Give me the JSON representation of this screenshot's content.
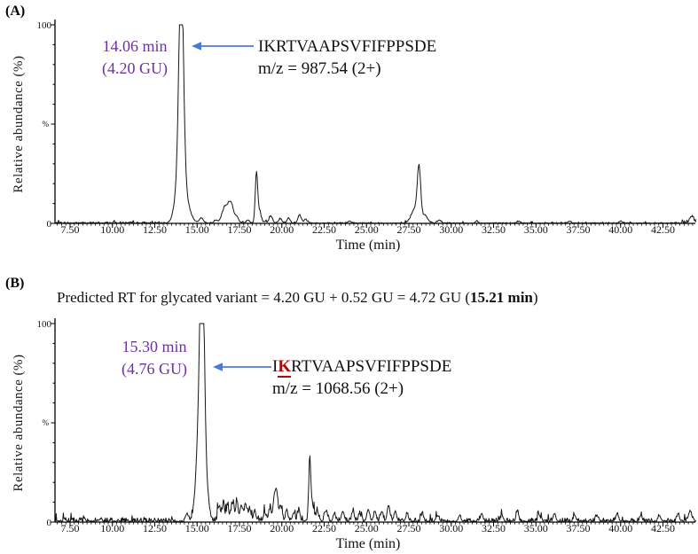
{
  "colors": {
    "accent_purple": "#7030A0",
    "arrow_blue": "#4a7cd6",
    "glycation_red": "#C00000",
    "trace_black": "#151515"
  },
  "panels": [
    {
      "label": "(A)",
      "ylabel": "Relative abundance (%)",
      "xlabel": "Time (min)",
      "y_top_label": "100",
      "y_mid_label": "%",
      "y_bottom_label": "0",
      "rt_line1": "14.06 min",
      "rt_line2": "(4.20 GU)",
      "peptide": {
        "pre": "IKRTVAAPSVFIFPPSDE",
        "gly": "",
        "post": ""
      },
      "mz": "m/z = 987.54 (2+)"
    },
    {
      "label": "(B)",
      "header": {
        "prefix": "Predicted RT for glycated variant = 4.20 GU + 0.52 GU = 4.72 GU (",
        "bold": "15.21 min",
        "suffix": ")"
      },
      "ylabel": "Relative abundance (%)",
      "xlabel": "Time (min)",
      "y_top_label": "100",
      "y_mid_label": "%",
      "y_bottom_label": "0",
      "rt_line1": "15.30 min",
      "rt_line2": "(4.76 GU)",
      "peptide": {
        "pre": "I",
        "gly": "K",
        "post": "RTVAAPSVFIFPPSDE"
      },
      "mz": "m/z = 1068.56 (2+)"
    }
  ],
  "chart_data": [
    {
      "type": "line",
      "title": "Extracted ion chromatogram of unmodified peptide IKRTVAAPSVFIFPPSDE, m/z 987.54 (2+)",
      "xlabel": "Time (min)",
      "ylabel": "Relative abundance (%)",
      "xlim": [
        6.61,
        44.45
      ],
      "ylim": [
        0,
        100
      ],
      "x_ticks": [
        "7.50",
        "10.00",
        "12.50",
        "15.00",
        "17.50",
        "20.00",
        "22.50",
        "25.00",
        "27.50",
        "30.00",
        "32.50",
        "35.00",
        "37.50",
        "40.00",
        "42.50"
      ],
      "minor_tick_step_min": 0.25,
      "grid": false,
      "main_peak": {
        "rt_min": 14.06,
        "gu": 4.2,
        "abundance_pct": 100
      },
      "peaks": [
        [
          14.06,
          100,
          0.13
        ],
        [
          14.0,
          25,
          0.25
        ],
        [
          14.3,
          8,
          0.3
        ],
        [
          15.25,
          2.5,
          0.12
        ],
        [
          16.1,
          1.5,
          0.1
        ],
        [
          16.65,
          8,
          0.18
        ],
        [
          17.0,
          9.5,
          0.15
        ],
        [
          17.35,
          3,
          0.1
        ],
        [
          18.0,
          1.5,
          0.08
        ],
        [
          18.5,
          23,
          0.07
        ],
        [
          18.65,
          6,
          0.12
        ],
        [
          19.35,
          3.5,
          0.1
        ],
        [
          19.9,
          2,
          0.1
        ],
        [
          20.4,
          2.5,
          0.08
        ],
        [
          21.05,
          4,
          0.1
        ],
        [
          21.4,
          2,
          0.08
        ],
        [
          24.0,
          1,
          0.1
        ],
        [
          27.85,
          7,
          0.2
        ],
        [
          28.1,
          26,
          0.1
        ],
        [
          28.45,
          4,
          0.15
        ],
        [
          29.3,
          1.5,
          0.1
        ],
        [
          31.5,
          1,
          0.08
        ],
        [
          34.0,
          1,
          0.08
        ],
        [
          37.0,
          1,
          0.08
        ],
        [
          40.0,
          1,
          0.08
        ],
        [
          44.2,
          3,
          0.12
        ]
      ],
      "noise_regions": [
        [
          6.61,
          12.8,
          0.9
        ],
        [
          12.8,
          16.2,
          0.6
        ],
        [
          16.2,
          21.8,
          1.1
        ],
        [
          21.8,
          27.2,
          0.55
        ],
        [
          27.2,
          29.5,
          0.8
        ],
        [
          29.5,
          43.6,
          0.55
        ],
        [
          43.6,
          44.45,
          1.6
        ]
      ]
    },
    {
      "type": "line",
      "title": "Extracted ion chromatogram of glycated peptide I[K]RTVAAPSVFIFPPSDE, m/z 1068.56 (2+)",
      "xlabel": "Time (min)",
      "ylabel": "Relative abundance (%)",
      "xlim": [
        6.61,
        44.45
      ],
      "ylim": [
        0,
        100
      ],
      "x_ticks": [
        "7.50",
        "10.00",
        "12.50",
        "15.00",
        "17.50",
        "20.00",
        "22.50",
        "25.00",
        "27.50",
        "30.00",
        "32.50",
        "35.00",
        "37.50",
        "40.00",
        "42.50"
      ],
      "minor_tick_step_min": 0.25,
      "grid": false,
      "predicted_rt": {
        "text_gu": 4.72,
        "rt_min": 15.21
      },
      "main_peak": {
        "rt_min": 15.3,
        "gu": 4.76,
        "abundance_pct": 100
      },
      "peaks": [
        [
          15.3,
          100,
          0.12
        ],
        [
          15.18,
          55,
          0.2
        ],
        [
          15.55,
          12,
          0.15
        ],
        [
          14.4,
          4,
          0.08
        ],
        [
          16.3,
          7,
          0.08
        ],
        [
          16.55,
          9,
          0.07
        ],
        [
          16.8,
          8,
          0.07
        ],
        [
          17.1,
          9,
          0.08
        ],
        [
          17.35,
          10,
          0.07
        ],
        [
          17.6,
          8,
          0.07
        ],
        [
          17.85,
          9,
          0.07
        ],
        [
          18.1,
          6,
          0.08
        ],
        [
          18.4,
          5,
          0.07
        ],
        [
          19.0,
          4,
          0.08
        ],
        [
          19.3,
          6,
          0.08
        ],
        [
          19.55,
          11,
          0.07
        ],
        [
          19.7,
          14,
          0.08
        ],
        [
          19.95,
          7,
          0.07
        ],
        [
          20.3,
          4,
          0.08
        ],
        [
          20.7,
          4,
          0.07
        ],
        [
          21.0,
          5,
          0.07
        ],
        [
          21.65,
          29,
          0.06
        ],
        [
          21.8,
          8,
          0.1
        ],
        [
          22.1,
          5,
          0.07
        ],
        [
          22.6,
          5,
          0.08
        ],
        [
          23.1,
          4,
          0.07
        ],
        [
          23.6,
          5,
          0.08
        ],
        [
          24.2,
          5,
          0.07
        ],
        [
          24.6,
          4,
          0.07
        ],
        [
          25.1,
          6,
          0.08
        ],
        [
          25.5,
          5,
          0.07
        ],
        [
          25.9,
          5,
          0.07
        ],
        [
          26.3,
          8,
          0.08
        ],
        [
          26.7,
          5,
          0.07
        ],
        [
          27.4,
          4,
          0.07
        ],
        [
          28.3,
          4,
          0.07
        ],
        [
          29.2,
          3,
          0.07
        ],
        [
          30.5,
          3,
          0.07
        ],
        [
          31.8,
          4,
          0.07
        ],
        [
          33.0,
          3,
          0.07
        ],
        [
          33.9,
          5,
          0.07
        ],
        [
          35.2,
          3,
          0.07
        ],
        [
          36.1,
          4,
          0.07
        ],
        [
          37.3,
          3,
          0.07
        ],
        [
          38.6,
          3,
          0.07
        ],
        [
          39.8,
          4,
          0.07
        ],
        [
          41.2,
          3,
          0.07
        ],
        [
          42.3,
          3,
          0.07
        ],
        [
          43.4,
          4,
          0.07
        ],
        [
          44.1,
          5,
          0.1
        ]
      ],
      "noise_regions": [
        [
          6.61,
          13.8,
          2.6
        ],
        [
          13.8,
          16.0,
          1.8
        ],
        [
          16.0,
          22.3,
          3.8
        ],
        [
          22.3,
          27.5,
          3.0
        ],
        [
          27.5,
          44.45,
          2.3
        ]
      ]
    }
  ]
}
